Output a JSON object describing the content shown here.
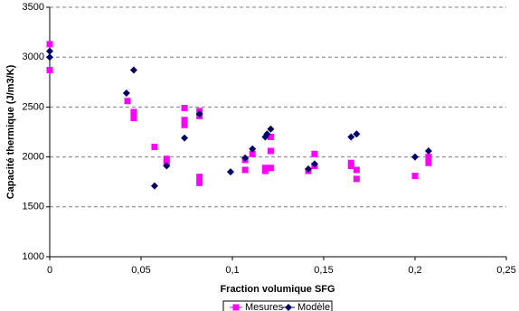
{
  "chart_data": {
    "type": "scatter",
    "x_label": "Fraction volumique SFG",
    "y_label": "Capacité thermique (J/m3/K)",
    "xlim": [
      0,
      0.25
    ],
    "xticks": [
      0,
      {
        "value": 0.05,
        "label": "0,05"
      },
      {
        "value": 0.1,
        "label": "0,1"
      },
      {
        "value": 0.15,
        "label": "0,15"
      },
      {
        "value": 0.2,
        "label": "0,2"
      },
      {
        "value": 0.25,
        "label": "0,25"
      }
    ],
    "ylim": [
      1000,
      3500
    ],
    "yticks": [
      1000,
      1500,
      2000,
      2500,
      3000,
      3500
    ],
    "grid": true,
    "legend": "bottom",
    "series": [
      {
        "name": "Mesures",
        "color": "#ff00ff",
        "marker": "square",
        "x": [
          0,
          0,
          0.0426,
          0.046,
          0.046,
          0.0574,
          0.064,
          0.064,
          0.0738,
          0.0738,
          0.0738,
          0.082,
          0.082,
          0.082,
          0.082,
          0.107,
          0.107,
          0.111,
          0.118,
          0.118,
          0.121,
          0.121,
          0.121,
          0.1416,
          0.145,
          0.145,
          0.165,
          0.165,
          0.168,
          0.168,
          0.2,
          0.2074,
          0.2074
        ],
        "values": [
          3130,
          2870,
          2560,
          2450,
          2390,
          2100,
          1980,
          1940,
          2490,
          2370,
          2320,
          2460,
          2410,
          1800,
          1740,
          1970,
          1870,
          2030,
          1890,
          1860,
          2200,
          2060,
          1890,
          1860,
          2030,
          1910,
          1940,
          1910,
          1870,
          1780,
          1810,
          2000,
          1940
        ]
      },
      {
        "name": "Modèle",
        "color": "#000066",
        "marker": "diamond",
        "x": [
          0,
          0,
          0.042,
          0.046,
          0.0574,
          0.064,
          0.0738,
          0.082,
          0.099,
          0.107,
          0.111,
          0.118,
          0.119,
          0.121,
          0.1416,
          0.145,
          0.165,
          0.168,
          0.2,
          0.2074
        ],
        "values": [
          3060,
          3000,
          2640,
          2870,
          1710,
          1910,
          2190,
          2430,
          1850,
          1990,
          2080,
          2200,
          2230,
          2280,
          1880,
          1930,
          2200,
          2230,
          2000,
          2060
        ]
      }
    ]
  }
}
